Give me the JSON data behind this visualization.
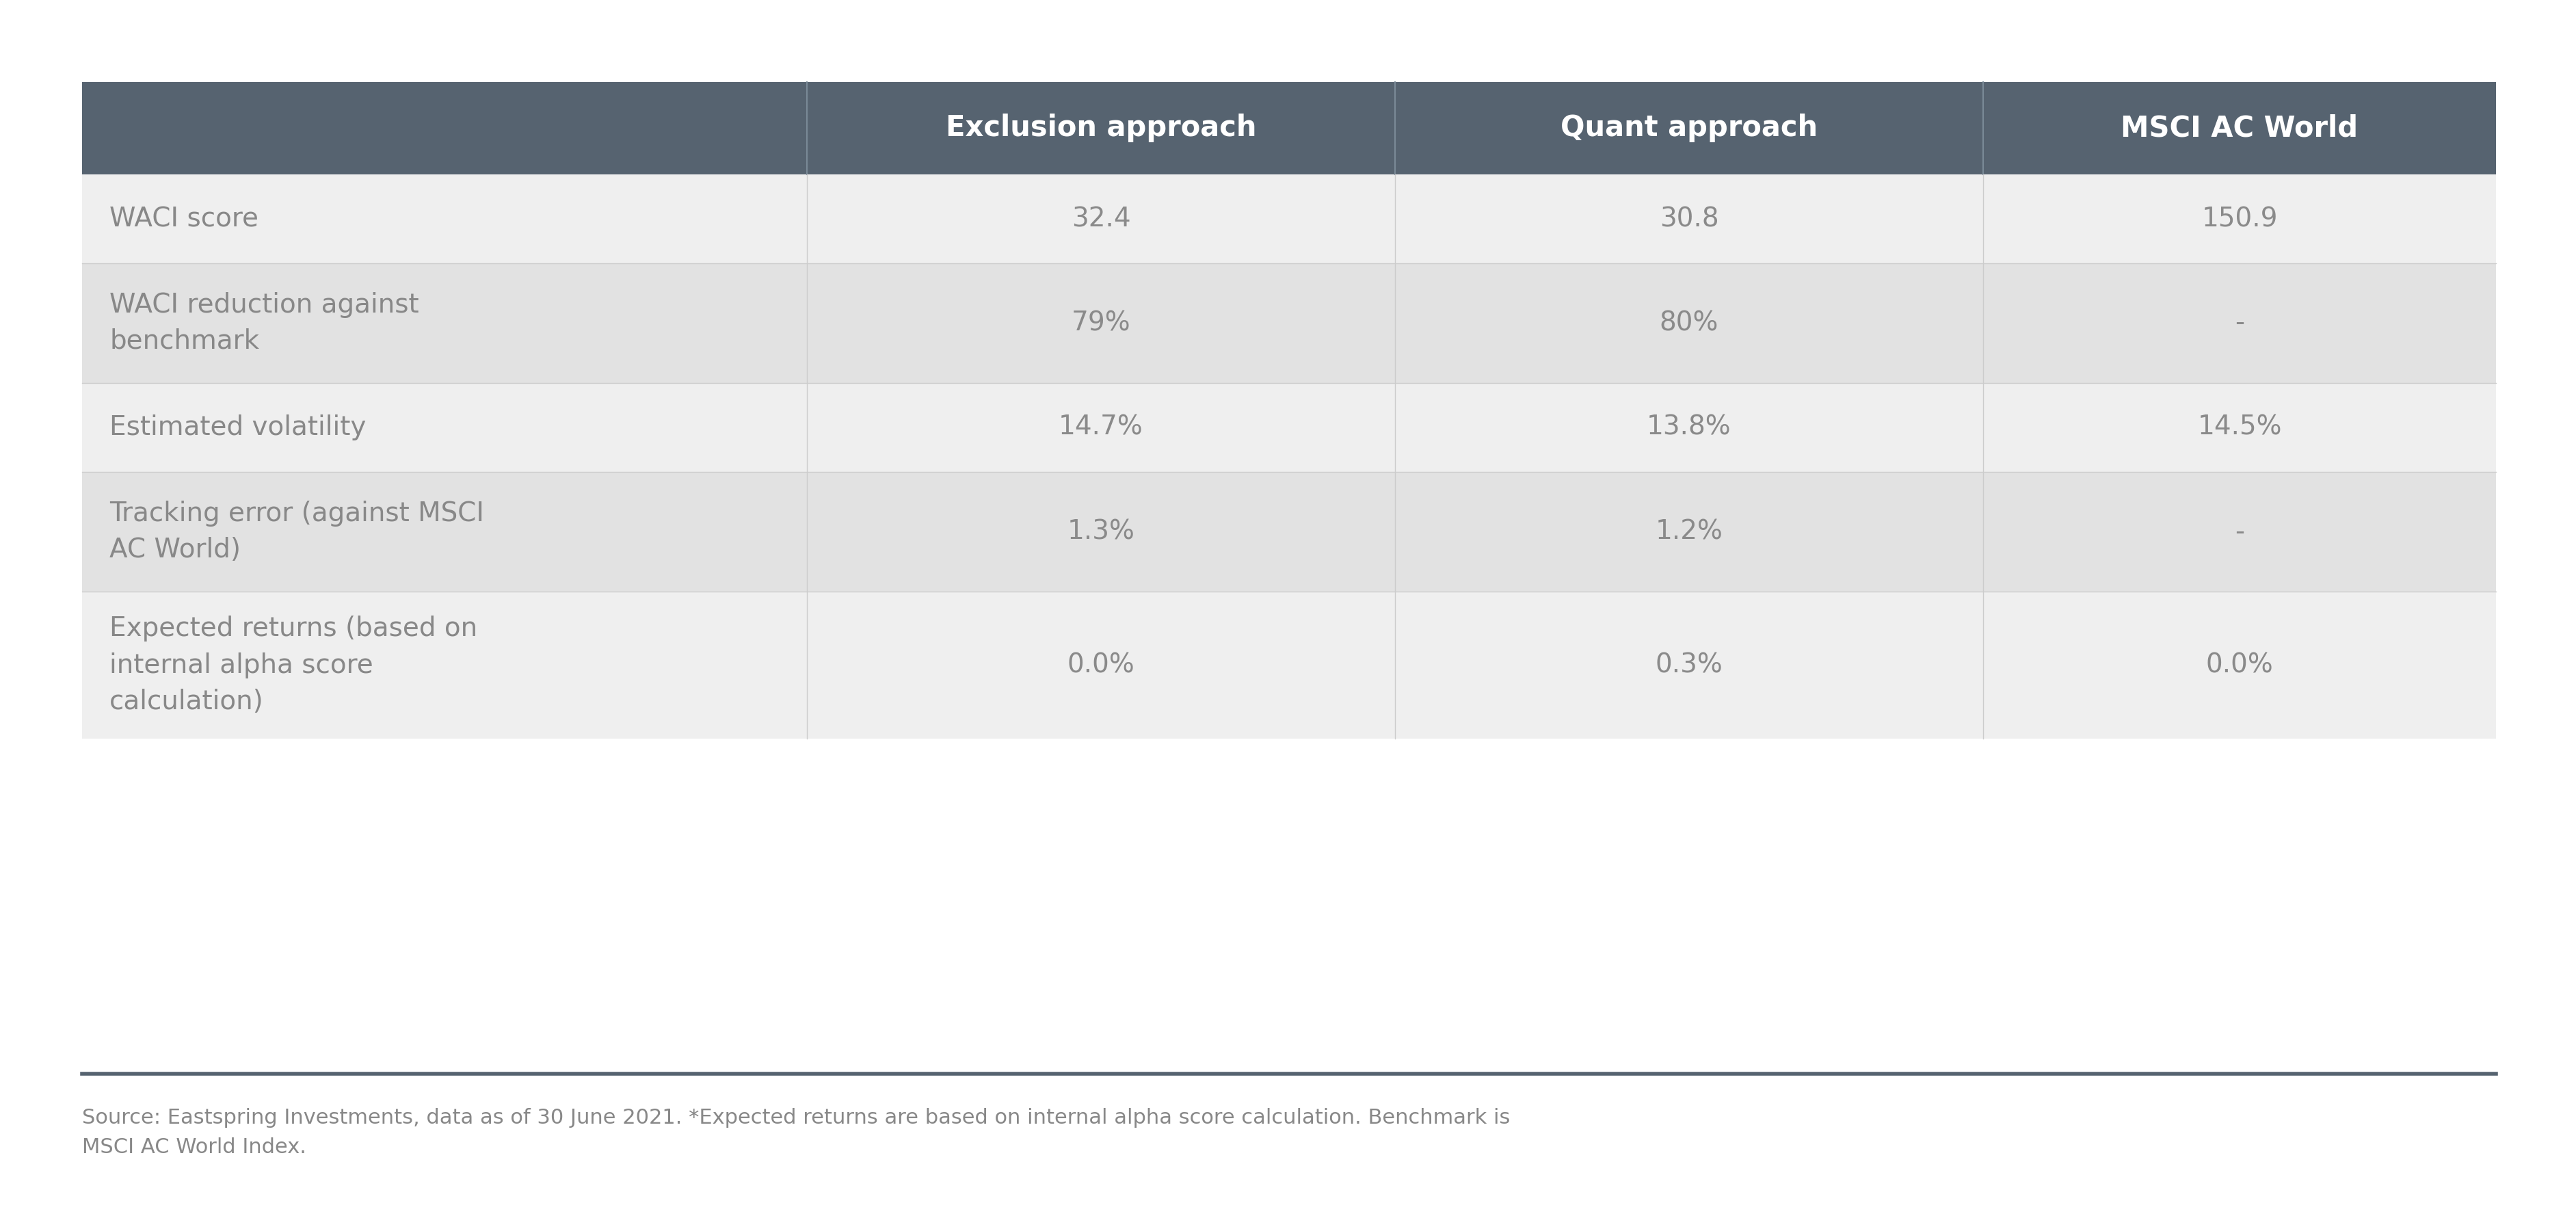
{
  "header_labels": [
    "Exclusion approach",
    "Quant approach",
    "MSCI AC World"
  ],
  "row_labels": [
    "WACI score",
    "WACI reduction against\nbenchmark",
    "Estimated volatility",
    "Tracking error (against MSCI\nAC World)",
    "Expected returns (based on\ninternal alpha score\ncalculation)"
  ],
  "cell_values": [
    [
      "32.4",
      "30.8",
      "150.9"
    ],
    [
      "79%",
      "80%",
      "-"
    ],
    [
      "14.7%",
      "13.8%",
      "14.5%"
    ],
    [
      "1.3%",
      "1.2%",
      "-"
    ],
    [
      "0.0%",
      "0.3%",
      "0.0%"
    ]
  ],
  "header_bg_color": "#566370",
  "header_text_color": "#ffffff",
  "row_bg_even": "#efefef",
  "row_bg_odd": "#e2e2e2",
  "cell_text_color": "#8a8a8a",
  "row_label_text_color": "#888888",
  "divider_color": "#cccccc",
  "footer_separator_color": "#566370",
  "footer_text": "Source: Eastspring Investments, data as of 30 June 2021. *Expected returns are based on internal alpha score calculation. Benchmark is\nMSCI AC World Index.",
  "footer_text_color": "#888888",
  "background_color": "#ffffff",
  "header_fontsize": 30,
  "cell_fontsize": 28,
  "row_label_fontsize": 28,
  "footer_fontsize": 22
}
